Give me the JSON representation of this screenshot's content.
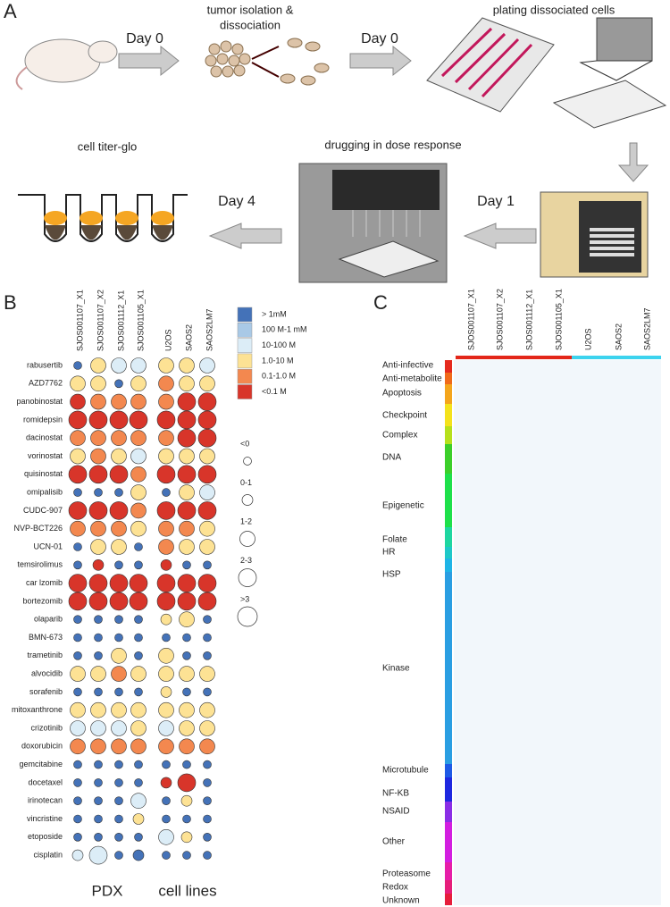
{
  "panel_a": {
    "label": "A",
    "day0_first": "Day 0",
    "isolation": [
      "tumor isolation &",
      "dissociation"
    ],
    "day0_second": "Day 0",
    "plating": "plating dissociated cells",
    "day1": "Day 1",
    "drugging": "drugging in dose response",
    "day4": "Day 4",
    "titer": "cell titer-glo"
  },
  "panel_b": {
    "label": "B",
    "pdx_columns": [
      "SJOS001107_X1",
      "SJOS001107_X2",
      "SJOS001112_X1",
      "SJOS001105_X1"
    ],
    "cell_line_columns": [
      "U2OS",
      "SAOS2",
      "SAOS2LM7"
    ],
    "pdx_label": "PDX",
    "cell_lines_label": "cell lines",
    "drugs": [
      "rabusertib",
      "AZD7762",
      "panobinostat",
      "romidepsin",
      "dacinostat",
      "vorinostat",
      "quisinostat",
      "omipalisib",
      "CUDC-907",
      "NVP-BCT226",
      "UCN-01",
      "temsirolimus",
      "car  lzomib",
      "bortezomib",
      "olaparib",
      "BMN-673",
      "trametinib",
      "alvocidib",
      "sorafenib",
      "mitoxanthrone",
      "crizotinib",
      "doxorubicin",
      "gemcitabine",
      "docetaxel",
      "irinotecan",
      "vincristine",
      "etoposide",
      "cisplatin"
    ],
    "color_legend": [
      "> 1mM",
      "100   M-1 mM",
      "10-100   M",
      "1.0-10   M",
      "0.1-1.0   M",
      "<0.1   M"
    ],
    "palette": [
      "#4472b8",
      "#a9c9e6",
      "#dcedf7",
      "#fde294",
      "#f3884f",
      "#d8352a"
    ],
    "size_legend": [
      "<0",
      "0-1",
      "1-2",
      "2-3",
      ">3"
    ],
    "pdx_color": [
      [
        0,
        3,
        2,
        2
      ],
      [
        3,
        3,
        0,
        3
      ],
      [
        5,
        4,
        4,
        4
      ],
      [
        5,
        5,
        5,
        5
      ],
      [
        4,
        4,
        4,
        4
      ],
      [
        3,
        4,
        3,
        2
      ],
      [
        5,
        5,
        5,
        4
      ],
      [
        0,
        0,
        0,
        3
      ],
      [
        5,
        5,
        5,
        4
      ],
      [
        4,
        4,
        4,
        3
      ],
      [
        0,
        3,
        3,
        0
      ],
      [
        0,
        5,
        0,
        0
      ],
      [
        5,
        5,
        5,
        5
      ],
      [
        5,
        5,
        5,
        5
      ],
      [
        0,
        0,
        0,
        0
      ],
      [
        0,
        0,
        0,
        0
      ],
      [
        0,
        0,
        3,
        0
      ],
      [
        3,
        3,
        4,
        3
      ],
      [
        0,
        0,
        0,
        0
      ],
      [
        3,
        3,
        3,
        3
      ],
      [
        2,
        2,
        2,
        3
      ],
      [
        4,
        4,
        4,
        4
      ],
      [
        0,
        0,
        0,
        0
      ],
      [
        0,
        0,
        0,
        0
      ],
      [
        0,
        0,
        0,
        2
      ],
      [
        0,
        0,
        0,
        3
      ],
      [
        0,
        0,
        0,
        0
      ],
      [
        2,
        2,
        0,
        0
      ]
    ],
    "pdx_size": [
      [
        0,
        2,
        2,
        2
      ],
      [
        2,
        2,
        0,
        2
      ],
      [
        2,
        2,
        2,
        2
      ],
      [
        3,
        3,
        3,
        3
      ],
      [
        2,
        2,
        2,
        2
      ],
      [
        2,
        2,
        2,
        2
      ],
      [
        3,
        3,
        3,
        2
      ],
      [
        0,
        0,
        0,
        2
      ],
      [
        3,
        3,
        3,
        2
      ],
      [
        2,
        2,
        2,
        2
      ],
      [
        0,
        2,
        2,
        0
      ],
      [
        0,
        1,
        0,
        0
      ],
      [
        3,
        3,
        3,
        3
      ],
      [
        3,
        3,
        3,
        3
      ],
      [
        0,
        0,
        0,
        0
      ],
      [
        0,
        0,
        0,
        0
      ],
      [
        0,
        0,
        2,
        0
      ],
      [
        2,
        2,
        2,
        2
      ],
      [
        0,
        0,
        0,
        0
      ],
      [
        2,
        2,
        2,
        2
      ],
      [
        2,
        2,
        2,
        2
      ],
      [
        2,
        2,
        2,
        2
      ],
      [
        0,
        0,
        0,
        0
      ],
      [
        0,
        0,
        0,
        0
      ],
      [
        0,
        0,
        0,
        2
      ],
      [
        0,
        0,
        0,
        1
      ],
      [
        0,
        0,
        0,
        0
      ],
      [
        1,
        3,
        0,
        1
      ]
    ],
    "cell_color": [
      [
        3,
        3,
        2
      ],
      [
        4,
        3,
        3
      ],
      [
        4,
        5,
        5
      ],
      [
        5,
        5,
        5
      ],
      [
        4,
        5,
        5
      ],
      [
        3,
        3,
        3
      ],
      [
        5,
        5,
        5
      ],
      [
        0,
        3,
        2
      ],
      [
        5,
        5,
        5
      ],
      [
        4,
        4,
        3
      ],
      [
        4,
        3,
        3
      ],
      [
        5,
        0,
        0
      ],
      [
        5,
        5,
        5
      ],
      [
        5,
        5,
        5
      ],
      [
        3,
        3,
        0
      ],
      [
        0,
        0,
        0
      ],
      [
        3,
        0,
        0
      ],
      [
        3,
        3,
        3
      ],
      [
        3,
        0,
        0
      ],
      [
        3,
        3,
        3
      ],
      [
        2,
        3,
        3
      ],
      [
        4,
        4,
        4
      ],
      [
        0,
        0,
        0
      ],
      [
        5,
        5,
        0
      ],
      [
        0,
        3,
        0
      ],
      [
        0,
        0,
        0
      ],
      [
        2,
        3,
        0
      ],
      [
        0,
        0,
        0
      ]
    ],
    "cell_size": [
      [
        2,
        2,
        2
      ],
      [
        2,
        2,
        2
      ],
      [
        2,
        3,
        3
      ],
      [
        3,
        3,
        3
      ],
      [
        2,
        3,
        3
      ],
      [
        2,
        2,
        2
      ],
      [
        3,
        3,
        3
      ],
      [
        0,
        2,
        2
      ],
      [
        3,
        3,
        3
      ],
      [
        2,
        2,
        2
      ],
      [
        2,
        2,
        2
      ],
      [
        1,
        0,
        0
      ],
      [
        3,
        3,
        3
      ],
      [
        3,
        3,
        3
      ],
      [
        1,
        2,
        0
      ],
      [
        0,
        0,
        0
      ],
      [
        2,
        0,
        0
      ],
      [
        2,
        2,
        2
      ],
      [
        1,
        0,
        0
      ],
      [
        2,
        2,
        2
      ],
      [
        2,
        2,
        2
      ],
      [
        2,
        2,
        2
      ],
      [
        0,
        0,
        0
      ],
      [
        1,
        3,
        0
      ],
      [
        0,
        1,
        0
      ],
      [
        0,
        0,
        0
      ],
      [
        2,
        1,
        0
      ],
      [
        0,
        0,
        0
      ]
    ]
  },
  "panel_c": {
    "label": "C",
    "pdx_columns": [
      "SJOS001107_X1",
      "SJOS001107_X2",
      "SJOS001112_X1",
      "SJOS001105_X1"
    ],
    "cell_line_columns": [
      "U2OS",
      "SAOS2",
      "SAOS2LM7"
    ],
    "categories": [
      "Anti-infective",
      "Anti-metabolite",
      "Apoptosis",
      "Checkpoint",
      "Complex",
      "DNA",
      "Epigenetic",
      "Folate",
      "HR",
      "HSP",
      "Kinase",
      "Microtubule",
      "NF-KB",
      "NSAID",
      "Other",
      "Proteasome",
      "Redox",
      "Unknown"
    ]
  }
}
